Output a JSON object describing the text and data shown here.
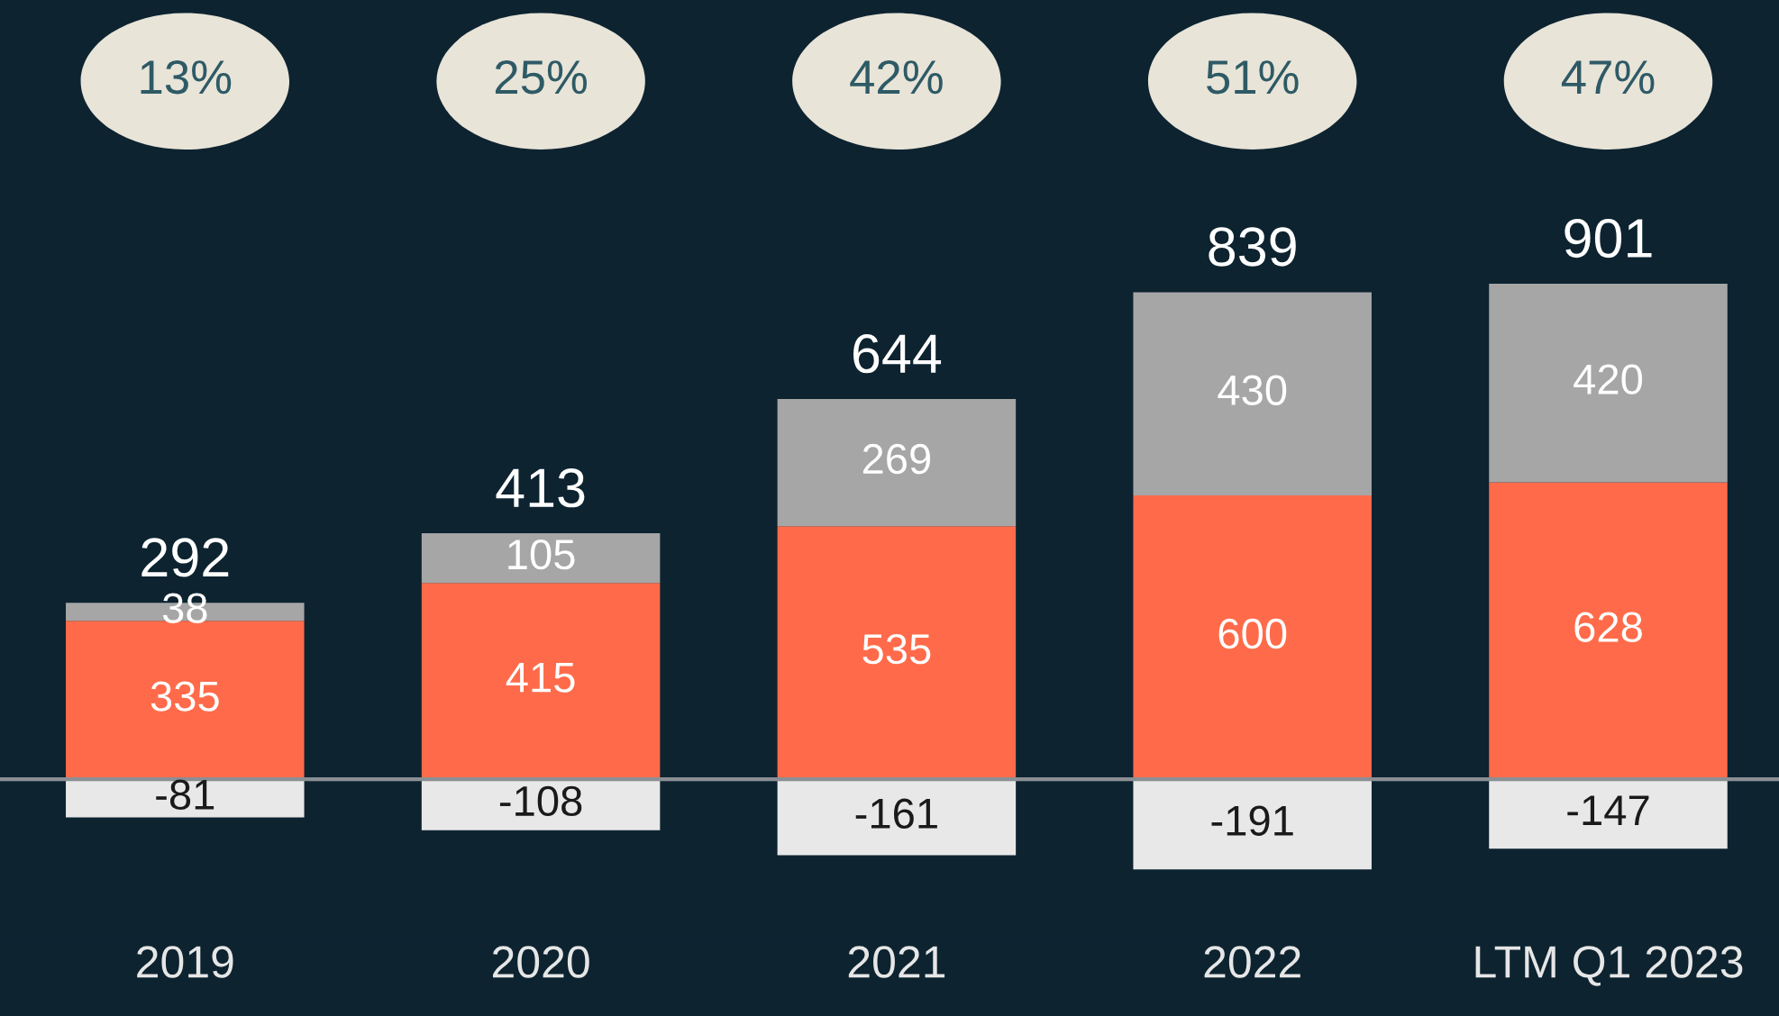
{
  "chart_data": {
    "type": "bar",
    "stacked": true,
    "categories": [
      "2019",
      "2020",
      "2021",
      "2022",
      "LTM Q1 2023"
    ],
    "series": [
      {
        "color": "#e8e8e8",
        "values": [
          -81,
          -108,
          -161,
          -191,
          -147
        ]
      },
      {
        "color": "#ff6b4a",
        "values": [
          335,
          415,
          535,
          600,
          628
        ]
      },
      {
        "color": "#a6a6a6",
        "values": [
          38,
          105,
          269,
          430,
          420
        ]
      }
    ],
    "data_labels": true,
    "totals": [
      "292",
      "413",
      "644",
      "839",
      "901"
    ],
    "annotations": [
      "13%",
      "25%",
      "42%",
      "51%",
      "47%"
    ]
  }
}
